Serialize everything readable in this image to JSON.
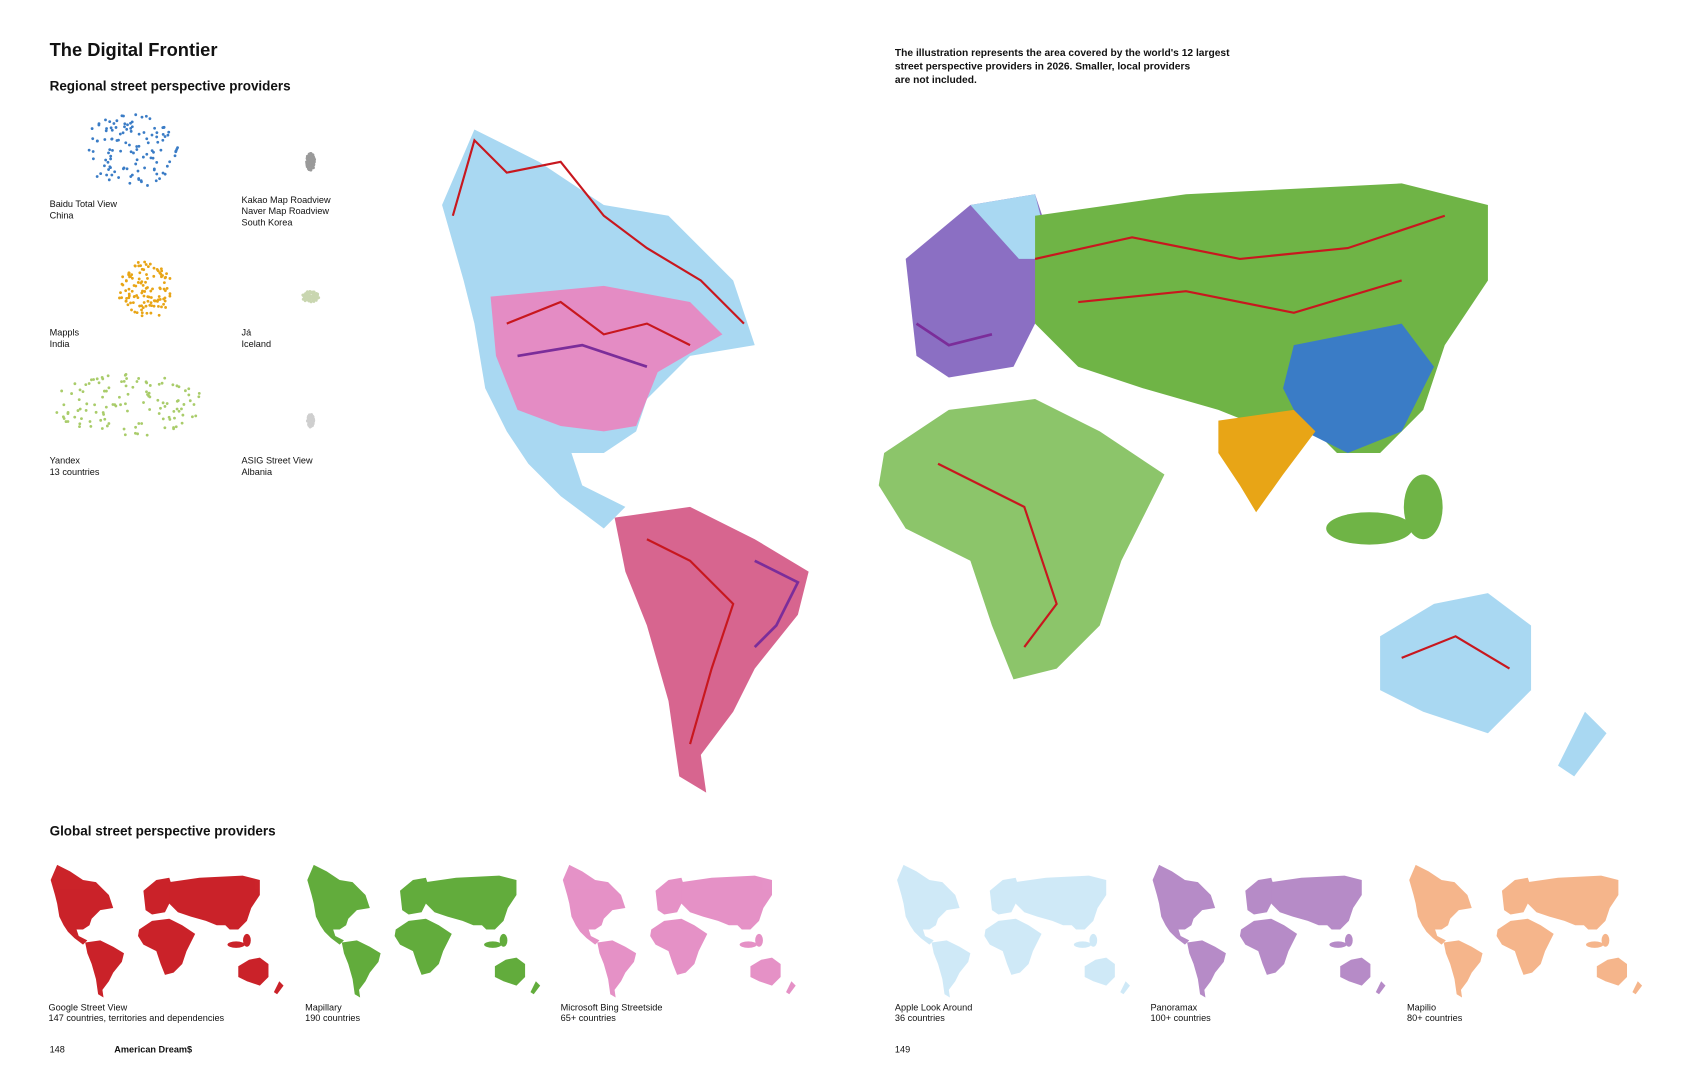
{
  "header": {
    "title": "The Digital Frontier",
    "subtitle": "Regional street perspective providers",
    "note": [
      "The illustration represents the area covered by the world's 12 largest",
      "street perspective providers in 2026. Smaller, local providers",
      "are not included."
    ]
  },
  "regional": [
    {
      "names": [
        "Baidu Total View"
      ],
      "coverage": "China",
      "color": "#3a7cc6"
    },
    {
      "names": [
        "Kakao Map Roadview",
        "Naver Map Roadview"
      ],
      "coverage": "South Korea",
      "color": "#9a9a9a"
    },
    {
      "names": [
        "Mappls"
      ],
      "coverage": "India",
      "color": "#e8a516"
    },
    {
      "names": [
        "Já"
      ],
      "coverage": "Iceland",
      "color": "#c9d6b0"
    },
    {
      "names": [
        "Yandex"
      ],
      "coverage": "13 countries",
      "color": "#a9cc6a"
    },
    {
      "names": [
        "ASIG Street View"
      ],
      "coverage": "Albania",
      "color": "#cfcfcf"
    }
  ],
  "global_title": "Global street perspective providers",
  "global": [
    {
      "name": "Google Street View",
      "coverage": "147 countries, territories and dependencies",
      "color": "#c8171e"
    },
    {
      "name": "Mapillary",
      "coverage": "190 countries",
      "color": "#5aa832"
    },
    {
      "name": "Microsoft Bing Streetside",
      "coverage": "65+ countries",
      "color": "#e48cc4"
    },
    {
      "name": "Apple Look Around",
      "coverage": "36 countries",
      "color": "#a9d8f2"
    },
    {
      "name": "Panoramax",
      "coverage": "100+ countries",
      "color": "#7b2d9a"
    },
    {
      "name": "Mapilio",
      "coverage": "80+ countries",
      "color": "#ee7a2e"
    }
  ],
  "footer": {
    "page_left": "148",
    "book": "American Dream$",
    "page_right": "149"
  }
}
